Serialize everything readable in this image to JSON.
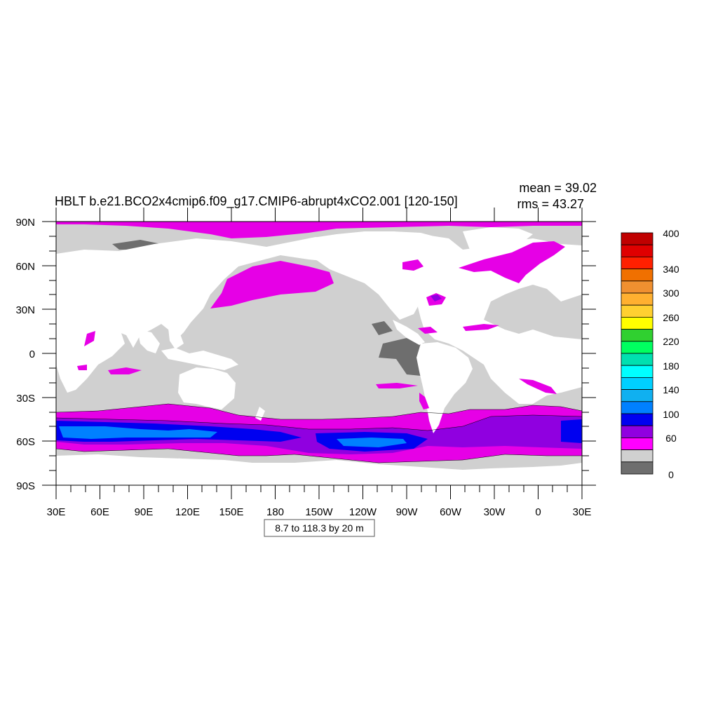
{
  "title": "HBLT b.e21.BCO2x4cmip6.f09_g17.CMIP6-abrupt4xCO2.001 [120-150]",
  "stats": {
    "mean": "mean = 39.02",
    "rms": "rms = 43.27"
  },
  "contour_info": "8.7 to 118.3 by 20 m",
  "axes": {
    "lat_labels": [
      "90N",
      "60N",
      "30N",
      "0",
      "30S",
      "60S",
      "90S"
    ],
    "lon_labels": [
      "30E",
      "60E",
      "90E",
      "120E",
      "150E",
      "180",
      "150W",
      "120W",
      "90W",
      "60W",
      "30W",
      "0",
      "30E"
    ]
  },
  "colorbar": {
    "labels": [
      "400",
      "340",
      "300",
      "260",
      "220",
      "180",
      "140",
      "100",
      "60",
      "0"
    ],
    "colors": [
      "#c00000",
      "#e00000",
      "#ff2000",
      "#f07000",
      "#f09030",
      "#ffb030",
      "#ffd030",
      "#ffff00",
      "#30d030",
      "#00ff60",
      "#00e0b0",
      "#00ffff",
      "#00d0ff",
      "#10b0f0",
      "#0080ff",
      "#0000f0",
      "#9000e0",
      "#ff00ff",
      "#d0d0d0",
      "#6e6e6e"
    ]
  },
  "palette": {
    "land": "#ffffff",
    "ocean_low": "#d0d0d0",
    "ocean_lowest": "#6e6e6e",
    "magenta": "#e600e6",
    "violet": "#9000e0",
    "blue": "#0000f0",
    "light_blue": "#0080ff"
  }
}
